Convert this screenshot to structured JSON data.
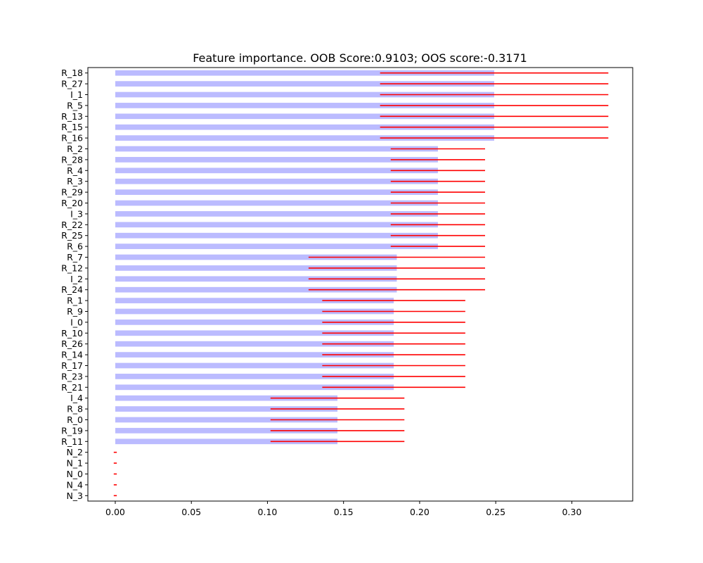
{
  "chart_data": {
    "type": "bar",
    "orientation": "horizontal",
    "title": "Feature importance. OOB Score:0.9103; OOS score:-0.3171",
    "xlabel": "",
    "ylabel": "",
    "xlim": [
      -0.018,
      0.34
    ],
    "x_ticks": [
      0.0,
      0.05,
      0.1,
      0.15,
      0.2,
      0.25,
      0.3
    ],
    "x_tick_labels": [
      "0.00",
      "0.05",
      "0.10",
      "0.15",
      "0.20",
      "0.25",
      "0.30"
    ],
    "grid": false,
    "legend": "none",
    "bar_color": "#bbbbff",
    "error_color": "#ff0000",
    "categories": [
      "R_18",
      "R_27",
      "I_1",
      "R_5",
      "R_13",
      "R_15",
      "R_16",
      "R_2",
      "R_28",
      "R_4",
      "R_3",
      "R_29",
      "R_20",
      "I_3",
      "R_22",
      "R_25",
      "R_6",
      "R_7",
      "R_12",
      "I_2",
      "R_24",
      "R_1",
      "R_9",
      "I_0",
      "R_10",
      "R_26",
      "R_14",
      "R_17",
      "R_23",
      "R_21",
      "I_4",
      "R_8",
      "R_0",
      "R_19",
      "R_11",
      "N_2",
      "N_1",
      "N_0",
      "N_4",
      "N_3"
    ],
    "values": [
      0.249,
      0.249,
      0.249,
      0.249,
      0.249,
      0.249,
      0.249,
      0.212,
      0.212,
      0.212,
      0.212,
      0.212,
      0.212,
      0.212,
      0.212,
      0.212,
      0.212,
      0.185,
      0.185,
      0.185,
      0.185,
      0.183,
      0.183,
      0.183,
      0.183,
      0.183,
      0.183,
      0.183,
      0.183,
      0.183,
      0.146,
      0.146,
      0.146,
      0.146,
      0.146,
      0.0,
      0.0,
      0.0,
      0.0,
      0.0
    ],
    "errors": [
      0.075,
      0.075,
      0.075,
      0.075,
      0.075,
      0.075,
      0.075,
      0.031,
      0.031,
      0.031,
      0.031,
      0.031,
      0.031,
      0.031,
      0.031,
      0.031,
      0.031,
      0.058,
      0.058,
      0.058,
      0.058,
      0.047,
      0.047,
      0.047,
      0.047,
      0.047,
      0.047,
      0.047,
      0.047,
      0.047,
      0.044,
      0.044,
      0.044,
      0.044,
      0.044,
      0.001,
      0.001,
      0.001,
      0.001,
      0.001
    ]
  }
}
